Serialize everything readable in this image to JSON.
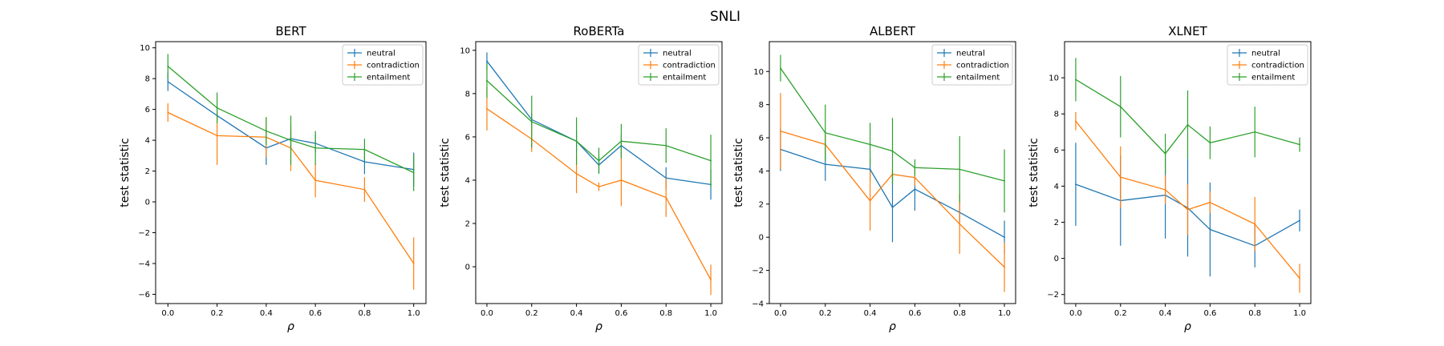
{
  "figure": {
    "title": "SNLI"
  },
  "colors": {
    "neutral": "#1f77b4",
    "contradiction": "#ff7f0e",
    "entailment": "#2ca02c"
  },
  "chart_data": [
    {
      "type": "line",
      "title": "BERT",
      "xlabel": "ρ",
      "ylabel": "test statistic",
      "xlim": [
        -0.05,
        1.05
      ],
      "ylim": [
        -6.6,
        10.4
      ],
      "xticks": [
        0.0,
        0.2,
        0.4,
        0.6,
        0.8,
        1.0
      ],
      "yticks": [
        -6,
        -4,
        -2,
        0,
        2,
        4,
        6,
        8,
        10
      ],
      "legend": "top-right",
      "x": [
        0.0,
        0.2,
        0.4,
        0.5,
        0.6,
        0.8,
        1.0
      ],
      "series": [
        {
          "name": "neutral",
          "values": [
            7.8,
            5.6,
            3.5,
            4.1,
            3.8,
            2.6,
            2.1
          ],
          "errors": [
            0.6,
            0.3,
            1.1,
            0.6,
            0.6,
            0.8,
            1.1
          ]
        },
        {
          "name": "contradiction",
          "values": [
            5.8,
            4.3,
            4.2,
            3.5,
            1.4,
            0.8,
            -4.0
          ],
          "errors": [
            0.6,
            1.9,
            1.3,
            1.5,
            1.1,
            0.8,
            1.7
          ]
        },
        {
          "name": "entailment",
          "values": [
            8.8,
            6.1,
            4.6,
            4.0,
            3.5,
            3.4,
            1.9
          ],
          "errors": [
            0.8,
            1.0,
            0.9,
            1.6,
            1.1,
            0.7,
            1.2
          ]
        }
      ]
    },
    {
      "type": "line",
      "title": "RoBERTa",
      "xlabel": "ρ",
      "ylabel": "test statistic",
      "xlim": [
        -0.05,
        1.05
      ],
      "ylim": [
        -1.7,
        10.4
      ],
      "xticks": [
        0.0,
        0.2,
        0.4,
        0.6,
        0.8,
        1.0
      ],
      "yticks": [
        0,
        2,
        4,
        6,
        8,
        10
      ],
      "legend": "top-right",
      "x": [
        0.0,
        0.2,
        0.4,
        0.5,
        0.6,
        0.8,
        1.0
      ],
      "series": [
        {
          "name": "neutral",
          "values": [
            9.5,
            6.8,
            5.8,
            4.7,
            5.6,
            4.1,
            3.8
          ],
          "errors": [
            0.4,
            0.3,
            0.5,
            0.4,
            0.5,
            0.5,
            0.7
          ]
        },
        {
          "name": "contradiction",
          "values": [
            7.3,
            5.9,
            4.3,
            3.7,
            4.0,
            3.2,
            -0.6
          ],
          "errors": [
            1.0,
            0.6,
            0.9,
            0.2,
            1.2,
            0.9,
            0.7
          ]
        },
        {
          "name": "entailment",
          "values": [
            8.6,
            6.7,
            5.8,
            4.9,
            5.8,
            5.6,
            4.9
          ],
          "errors": [
            0.8,
            1.2,
            1.1,
            0.6,
            0.8,
            0.8,
            1.2
          ]
        }
      ]
    },
    {
      "type": "line",
      "title": "ALBERT",
      "xlabel": "ρ",
      "ylabel": "test statistic",
      "xlim": [
        -0.05,
        1.05
      ],
      "ylim": [
        -4.0,
        11.8
      ],
      "xticks": [
        0.0,
        0.2,
        0.4,
        0.6,
        0.8,
        1.0
      ],
      "yticks": [
        -4,
        -2,
        0,
        2,
        4,
        6,
        8,
        10
      ],
      "legend": "top-right",
      "x": [
        0.0,
        0.2,
        0.4,
        0.5,
        0.6,
        0.8,
        1.0
      ],
      "series": [
        {
          "name": "neutral",
          "values": [
            5.3,
            4.4,
            4.1,
            1.8,
            2.9,
            1.5,
            0.0
          ],
          "errors": [
            1.3,
            1.0,
            0.7,
            2.1,
            1.3,
            0.6,
            1.0
          ]
        },
        {
          "name": "contradiction",
          "values": [
            6.4,
            5.6,
            2.2,
            3.8,
            3.6,
            0.8,
            -1.8
          ],
          "errors": [
            2.3,
            0.6,
            1.8,
            0.3,
            0.5,
            1.8,
            1.5
          ]
        },
        {
          "name": "entailment",
          "values": [
            10.2,
            6.3,
            5.6,
            5.2,
            4.2,
            4.1,
            3.4
          ],
          "errors": [
            0.8,
            1.7,
            1.3,
            2.0,
            0.5,
            2.0,
            1.9
          ]
        }
      ]
    },
    {
      "type": "line",
      "title": "XLNET",
      "xlabel": "ρ",
      "ylabel": "test statistic",
      "xlim": [
        -0.05,
        1.05
      ],
      "ylim": [
        -2.5,
        12.0
      ],
      "xticks": [
        0.0,
        0.2,
        0.4,
        0.6,
        0.8,
        1.0
      ],
      "yticks": [
        -2,
        0,
        2,
        4,
        6,
        8,
        10
      ],
      "legend": "top-right",
      "x": [
        0.0,
        0.2,
        0.4,
        0.5,
        0.6,
        0.8,
        1.0
      ],
      "series": [
        {
          "name": "neutral",
          "values": [
            4.1,
            3.2,
            3.5,
            2.8,
            1.6,
            0.7,
            2.1
          ],
          "errors": [
            2.3,
            2.5,
            2.4,
            2.7,
            2.6,
            1.2,
            0.6
          ]
        },
        {
          "name": "contradiction",
          "values": [
            7.6,
            4.5,
            3.8,
            2.7,
            3.1,
            1.9,
            -1.1
          ],
          "errors": [
            0.5,
            1.7,
            0.8,
            1.4,
            0.6,
            1.5,
            0.8
          ]
        },
        {
          "name": "entailment",
          "values": [
            9.9,
            8.4,
            5.8,
            7.4,
            6.4,
            7.0,
            6.3
          ],
          "errors": [
            1.2,
            1.7,
            1.1,
            1.9,
            0.9,
            1.4,
            0.4
          ]
        }
      ]
    }
  ]
}
